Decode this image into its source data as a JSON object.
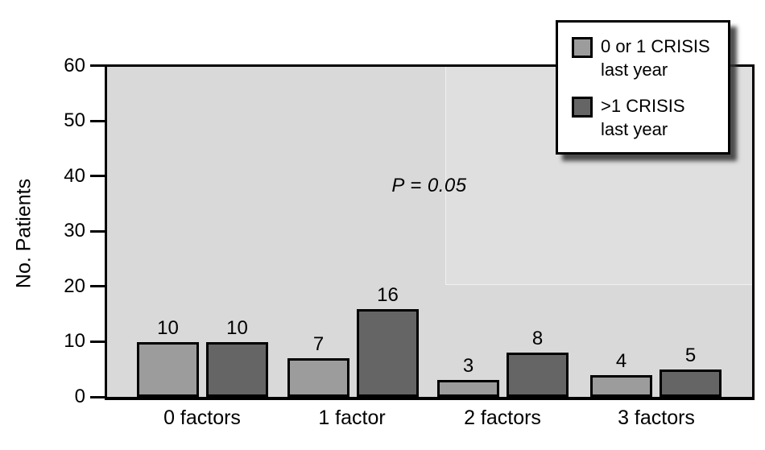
{
  "figure": {
    "background": "#ffffff",
    "text_color": "#000000",
    "plot_border_color": "#000000"
  },
  "chart_data": {
    "type": "bar",
    "title": "",
    "xlabel": "",
    "ylabel": "No. Patients",
    "ylim": [
      0,
      60
    ],
    "yticks": [
      0,
      10,
      20,
      30,
      40,
      50,
      60
    ],
    "categories": [
      "0 factors",
      "1 factor",
      "2 factors",
      "3 factors"
    ],
    "series": [
      {
        "name": "0 or 1 CRISIS last year",
        "color": "#9c9c9c",
        "values": [
          10,
          7,
          3,
          4
        ]
      },
      {
        "name": ">1 CRISIS last year",
        "color": "#656565",
        "values": [
          10,
          16,
          8,
          5
        ]
      }
    ],
    "bar_value_labels_shown": true,
    "annotation": "P = 0.05",
    "legend_position": "top-right",
    "plot_background": "#d9d9d9",
    "grid": false
  },
  "legend": {
    "entries": [
      {
        "line1": "0 or 1 CRISIS",
        "line2": "last year",
        "color": "#9c9c9c"
      },
      {
        "line1": ">1 CRISIS",
        "line2": "last year",
        "color": "#656565"
      }
    ]
  }
}
